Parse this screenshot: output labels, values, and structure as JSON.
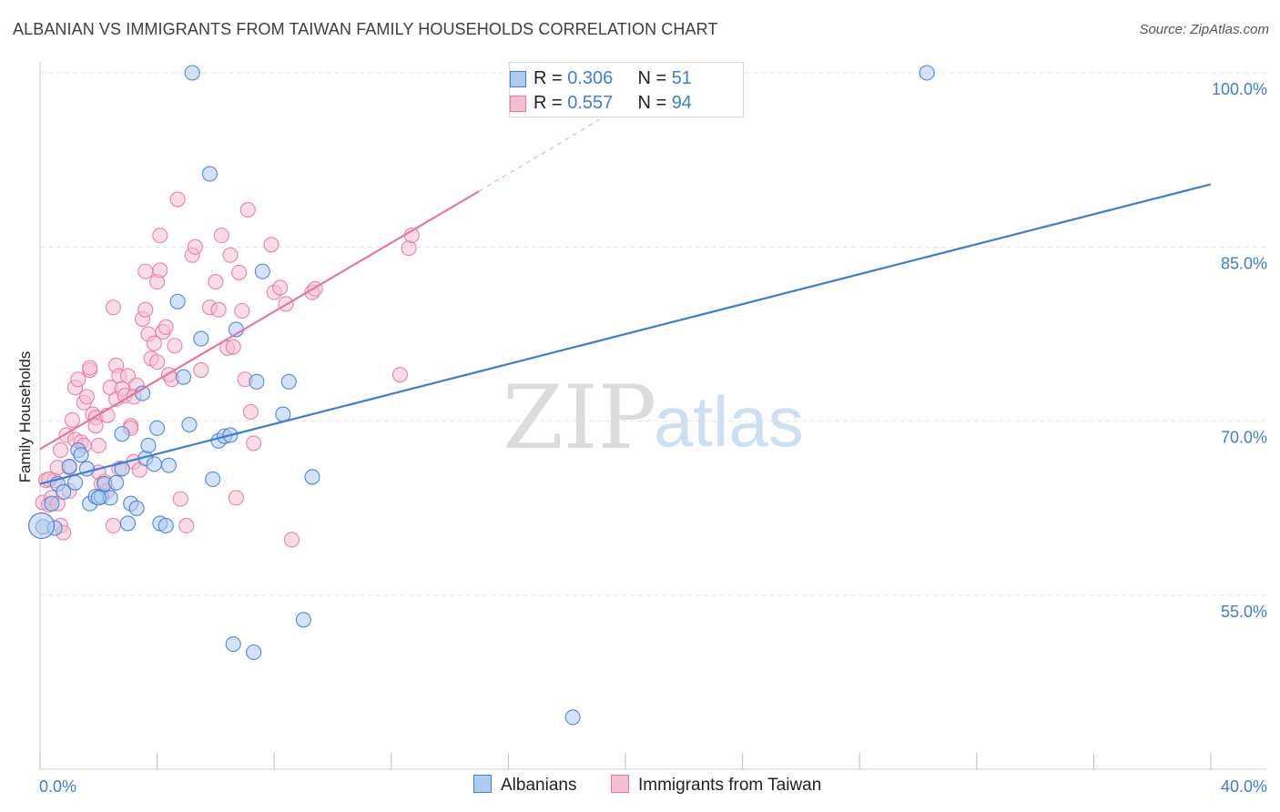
{
  "title": "ALBANIAN VS IMMIGRANTS FROM TAIWAN FAMILY HOUSEHOLDS CORRELATION CHART",
  "source": "Source: ZipAtlas.com",
  "colors": {
    "blue": "#3d7ed6",
    "blue_fill": "#aecbf0",
    "pink": "#e8779f",
    "pink_fill": "#f6bfd1",
    "grid": "#e3e3e3",
    "axis_text": "#3d7ed6"
  },
  "legend": {
    "rows": [
      {
        "r_label": "R = ",
        "r_value": "0.306",
        "n_label": "N = ",
        "n_value": "51"
      },
      {
        "r_label": "R = ",
        "r_value": "0.557",
        "n_label": "N = ",
        "n_value": "94"
      }
    ]
  },
  "chart_data": {
    "type": "scatter",
    "title": "ALBANIAN VS IMMIGRANTS FROM TAIWAN FAMILY HOUSEHOLDS CORRELATION CHART",
    "xlabel": "",
    "ylabel": "Family Households",
    "xlim": [
      0,
      40
    ],
    "ylim": [
      40,
      102
    ],
    "x_tick_labels": [
      "0.0%",
      "40.0%"
    ],
    "y_ticks": [
      55,
      70,
      85,
      100
    ],
    "y_tick_labels": [
      "55.0%",
      "70.0%",
      "85.0%",
      "100.0%"
    ],
    "watermark": {
      "zip": "ZIP",
      "atlas": "atlas"
    },
    "series": [
      {
        "name": "Albanians",
        "R": 0.306,
        "N": 51,
        "trend": {
          "x0": 0,
          "y0": 64.6,
          "x1": 40,
          "y1": 90.4
        },
        "points": [
          [
            0.1,
            60.9
          ],
          [
            0.4,
            62.9
          ],
          [
            0.6,
            64.6
          ],
          [
            0.8,
            63.9
          ],
          [
            1.0,
            66.1
          ],
          [
            1.2,
            64.7
          ],
          [
            1.3,
            67.5
          ],
          [
            1.4,
            67.1
          ],
          [
            1.6,
            65.9
          ],
          [
            1.7,
            62.9
          ],
          [
            1.9,
            63.5
          ],
          [
            2.1,
            63.5
          ],
          [
            2.2,
            64.6
          ],
          [
            2.4,
            63.4
          ],
          [
            2.6,
            64.7
          ],
          [
            2.8,
            65.9
          ],
          [
            2.8,
            68.9
          ],
          [
            3.0,
            61.2
          ],
          [
            3.1,
            62.9
          ],
          [
            3.3,
            62.5
          ],
          [
            3.5,
            72.4
          ],
          [
            3.6,
            66.8
          ],
          [
            3.7,
            67.9
          ],
          [
            3.9,
            66.3
          ],
          [
            4.0,
            69.4
          ],
          [
            4.1,
            61.2
          ],
          [
            4.3,
            61.0
          ],
          [
            4.4,
            66.2
          ],
          [
            4.7,
            80.3
          ],
          [
            4.9,
            73.8
          ],
          [
            5.1,
            69.7
          ],
          [
            5.2,
            100.0
          ],
          [
            5.5,
            77.1
          ],
          [
            5.8,
            91.3
          ],
          [
            5.9,
            65.0
          ],
          [
            6.1,
            68.3
          ],
          [
            6.3,
            68.7
          ],
          [
            6.5,
            68.8
          ],
          [
            6.6,
            50.8
          ],
          [
            6.7,
            77.9
          ],
          [
            7.3,
            50.1
          ],
          [
            7.4,
            73.4
          ],
          [
            7.6,
            82.9
          ],
          [
            8.3,
            70.6
          ],
          [
            8.5,
            73.4
          ],
          [
            9.0,
            52.9
          ],
          [
            9.3,
            65.2
          ],
          [
            18.2,
            44.5
          ],
          [
            30.3,
            100.0
          ],
          [
            0.5,
            60.8
          ],
          [
            2.0,
            63.4
          ]
        ]
      },
      {
        "name": "Immigrants from Taiwan",
        "R": 0.557,
        "N": 94,
        "trend": {
          "x0": 0,
          "y0": 67.6,
          "x1": 15.0,
          "y1": 89.8,
          "dash_x1": 20.0,
          "dash_y1": 97.3
        },
        "points": [
          [
            0.1,
            63.0
          ],
          [
            0.2,
            64.9
          ],
          [
            0.3,
            62.8
          ],
          [
            0.4,
            63.4
          ],
          [
            0.5,
            64.9
          ],
          [
            0.6,
            62.9
          ],
          [
            0.7,
            61.0
          ],
          [
            0.7,
            67.5
          ],
          [
            0.8,
            60.4
          ],
          [
            0.9,
            68.8
          ],
          [
            1.0,
            66.0
          ],
          [
            1.0,
            64.0
          ],
          [
            1.1,
            70.1
          ],
          [
            1.2,
            68.4
          ],
          [
            1.2,
            72.9
          ],
          [
            1.3,
            73.6
          ],
          [
            1.4,
            68.2
          ],
          [
            1.5,
            71.6
          ],
          [
            1.5,
            67.9
          ],
          [
            1.6,
            72.1
          ],
          [
            1.7,
            74.4
          ],
          [
            1.7,
            74.6
          ],
          [
            1.8,
            70.6
          ],
          [
            1.9,
            70.3
          ],
          [
            2.0,
            67.9
          ],
          [
            2.0,
            65.6
          ],
          [
            2.1,
            64.6
          ],
          [
            2.2,
            64.8
          ],
          [
            2.3,
            64.0
          ],
          [
            2.3,
            70.5
          ],
          [
            2.4,
            72.9
          ],
          [
            2.5,
            61.0
          ],
          [
            2.5,
            79.8
          ],
          [
            2.6,
            74.8
          ],
          [
            2.6,
            71.9
          ],
          [
            2.7,
            73.9
          ],
          [
            2.7,
            65.9
          ],
          [
            2.8,
            72.8
          ],
          [
            2.9,
            72.2
          ],
          [
            3.0,
            73.9
          ],
          [
            3.1,
            69.6
          ],
          [
            3.1,
            69.4
          ],
          [
            3.2,
            66.5
          ],
          [
            3.3,
            73.1
          ],
          [
            3.4,
            65.8
          ],
          [
            3.5,
            78.8
          ],
          [
            3.6,
            79.6
          ],
          [
            3.6,
            82.9
          ],
          [
            3.7,
            77.5
          ],
          [
            3.8,
            75.4
          ],
          [
            3.9,
            76.7
          ],
          [
            4.0,
            75.1
          ],
          [
            4.0,
            82.0
          ],
          [
            4.1,
            86.0
          ],
          [
            4.1,
            83.0
          ],
          [
            4.2,
            77.7
          ],
          [
            4.3,
            78.1
          ],
          [
            4.4,
            74.0
          ],
          [
            4.5,
            73.6
          ],
          [
            4.6,
            76.5
          ],
          [
            4.7,
            89.1
          ],
          [
            4.8,
            63.3
          ],
          [
            5.0,
            61.0
          ],
          [
            5.2,
            84.3
          ],
          [
            5.3,
            85.0
          ],
          [
            5.5,
            74.4
          ],
          [
            5.8,
            79.8
          ],
          [
            6.0,
            82.0
          ],
          [
            6.1,
            79.6
          ],
          [
            6.2,
            86.0
          ],
          [
            6.4,
            76.3
          ],
          [
            6.5,
            84.3
          ],
          [
            6.6,
            76.4
          ],
          [
            6.7,
            63.4
          ],
          [
            6.8,
            82.8
          ],
          [
            6.9,
            79.5
          ],
          [
            7.0,
            73.6
          ],
          [
            7.1,
            88.2
          ],
          [
            7.2,
            70.8
          ],
          [
            7.3,
            68.1
          ],
          [
            7.9,
            85.2
          ],
          [
            8.0,
            81.1
          ],
          [
            8.2,
            81.5
          ],
          [
            8.4,
            80.1
          ],
          [
            8.6,
            59.8
          ],
          [
            9.3,
            81.1
          ],
          [
            9.4,
            81.4
          ],
          [
            12.3,
            74.0
          ],
          [
            12.6,
            84.9
          ],
          [
            12.7,
            86.0
          ],
          [
            0.3,
            65.0
          ],
          [
            1.9,
            69.6
          ],
          [
            3.2,
            72.1
          ],
          [
            0.6,
            66.0
          ]
        ]
      }
    ]
  },
  "bottom_legend": [
    {
      "label": "Albanians"
    },
    {
      "label": "Immigrants from Taiwan"
    }
  ]
}
